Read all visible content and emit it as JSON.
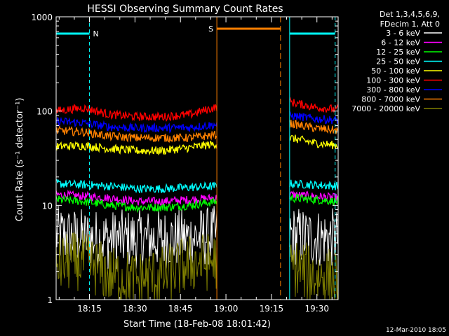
{
  "chart_data": {
    "type": "line",
    "title": "HESSI Observing Summary Count Rates",
    "xlabel": "Start Time (18-Feb-08 18:01:42)",
    "ylabel": "Count Rate (s⁻¹ detector⁻¹)",
    "x_range": [
      "18:04",
      "19:37"
    ],
    "ylim": [
      1,
      1000
    ],
    "yscale": "log",
    "x_ticks": [
      "18:15",
      "18:30",
      "18:45",
      "19:00",
      "19:15",
      "19:30"
    ],
    "y_ticks": [
      "1",
      "10",
      "100",
      "1000"
    ],
    "grid": false,
    "legend_header": [
      "Det 1,3,4,5,6,9,",
      "FDecim 1, Att 0"
    ],
    "legend_placement": "right",
    "footer": "12-Mar-2010 18:05",
    "markers": [
      {
        "label": "N",
        "color": "#00ffff",
        "time": "18:15",
        "style": "dashed"
      },
      {
        "label": "S",
        "color": "#ff8000",
        "time": "18:57"
      }
    ],
    "segments": [
      {
        "start": "18:04",
        "end": "18:57"
      },
      {
        "start": "19:21",
        "end": "19:37"
      }
    ],
    "series": [
      {
        "name": "3 - 6 keV",
        "color": "#ffffff",
        "values": [
          [
            4.8,
            4.5,
            4.3,
            4.4,
            4.4,
            4.5,
            4.8
          ],
          [
            4.8,
            4.5,
            4.5
          ]
        ]
      },
      {
        "name": "6 - 12 keV",
        "color": "#ff00ff",
        "values": [
          [
            13,
            12.5,
            12,
            11,
            11,
            11.5,
            12
          ],
          [
            13,
            12.5,
            12
          ]
        ]
      },
      {
        "name": "12 - 25 keV",
        "color": "#00ff00",
        "values": [
          [
            11.5,
            11,
            10,
            9.5,
            9.5,
            10,
            11
          ],
          [
            12,
            11.5,
            11
          ]
        ]
      },
      {
        "name": "25 - 50 keV",
        "color": "#00ffff",
        "values": [
          [
            17,
            16.5,
            16,
            15,
            15,
            15.5,
            16
          ],
          [
            17,
            16.5,
            16
          ]
        ]
      },
      {
        "name": "50 - 100 keV",
        "color": "#ffff00",
        "values": [
          [
            42,
            43,
            40,
            38,
            38,
            41,
            45
          ],
          [
            52,
            46,
            43
          ]
        ]
      },
      {
        "name": "100 - 300 keV",
        "color": "#ff0000",
        "values": [
          [
            100,
            108,
            92,
            87,
            87,
            92,
            110
          ],
          [
            125,
            110,
            104
          ]
        ]
      },
      {
        "name": "300 - 800 keV",
        "color": "#0000ff",
        "values": [
          [
            78,
            75,
            68,
            66,
            66,
            67,
            72
          ],
          [
            90,
            83,
            80
          ]
        ]
      },
      {
        "name": "800 - 7000 keV",
        "color": "#ff8000",
        "values": [
          [
            62,
            60,
            54,
            52,
            52,
            52,
            56
          ],
          [
            74,
            66,
            62
          ]
        ]
      },
      {
        "name": "7000 - 20000 keV",
        "color": "#808000",
        "values": [
          [
            2.4,
            2.6,
            1.8,
            1.6,
            1.8,
            2.4,
            2.6
          ],
          [
            2.3,
            1.8,
            1.7
          ]
        ]
      }
    ],
    "saa_flag_level": 750
  }
}
